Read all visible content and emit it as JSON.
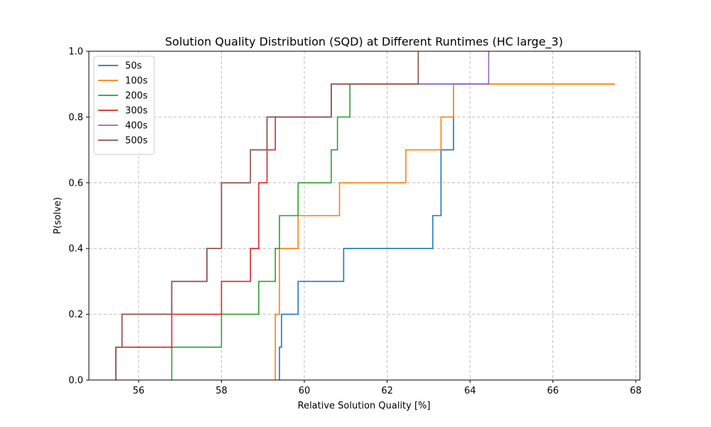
{
  "chart_data": {
    "type": "line",
    "title": "Solution Quality Distribution (SQD) at Different Runtimes (HC large_3)",
    "xlabel": "Relative Solution Quality [%]",
    "ylabel": "P(solve)",
    "xlim": [
      54.8,
      68.1
    ],
    "ylim": [
      0,
      1
    ],
    "xticks": [
      56,
      58,
      60,
      62,
      64,
      66,
      68
    ],
    "xtick_labels": [
      "56",
      "58",
      "60",
      "62",
      "64",
      "66",
      "68"
    ],
    "yticks": [
      0,
      0.2,
      0.4,
      0.6,
      0.8,
      1.0
    ],
    "ytick_labels": [
      "0.0",
      "0.2",
      "0.4",
      "0.6",
      "0.8",
      "1.0"
    ],
    "grid": true,
    "legend_position": "top-left",
    "step": "post",
    "series": [
      {
        "name": "50s",
        "color": "#1f77b4",
        "x": [
          59.4,
          59.45,
          59.85,
          60.95,
          63.1,
          63.3,
          63.6,
          67.5
        ],
        "y": [
          0.1,
          0.2,
          0.3,
          0.4,
          0.5,
          0.7,
          0.9,
          0.9
        ]
      },
      {
        "name": "100s",
        "color": "#ff7f0e",
        "x": [
          59.3,
          59.4,
          59.85,
          60.85,
          62.45,
          63.3,
          63.6,
          67.5
        ],
        "y": [
          0.2,
          0.4,
          0.5,
          0.6,
          0.7,
          0.8,
          0.9,
          0.9
        ]
      },
      {
        "name": "200s",
        "color": "#2ca02c",
        "x": [
          56.8,
          58.0,
          58.9,
          59.3,
          59.4,
          59.85,
          60.65,
          60.8,
          61.1,
          64.45
        ],
        "y": [
          0.1,
          0.2,
          0.3,
          0.4,
          0.5,
          0.6,
          0.7,
          0.8,
          0.9,
          0.9
        ]
      },
      {
        "name": "300s",
        "color": "#d62728",
        "x": [
          55.45,
          56.8,
          58.0,
          58.7,
          58.9,
          59.1,
          59.3,
          60.65,
          64.45
        ],
        "y": [
          0.1,
          0.2,
          0.3,
          0.4,
          0.6,
          0.7,
          0.8,
          0.9,
          0.9
        ]
      },
      {
        "name": "400s",
        "color": "#9467bd",
        "x": [
          55.45,
          55.6,
          56.8,
          57.65,
          58.0,
          58.7,
          59.1,
          60.65,
          64.45
        ],
        "y": [
          0.1,
          0.2,
          0.3,
          0.4,
          0.6,
          0.7,
          0.8,
          0.9,
          1.0
        ]
      },
      {
        "name": "500s",
        "color": "#8c564b",
        "x": [
          55.45,
          55.6,
          56.8,
          57.65,
          58.0,
          58.7,
          59.1,
          60.65,
          62.75
        ],
        "y": [
          0.1,
          0.2,
          0.3,
          0.4,
          0.6,
          0.7,
          0.8,
          0.9,
          1.0
        ]
      }
    ]
  }
}
